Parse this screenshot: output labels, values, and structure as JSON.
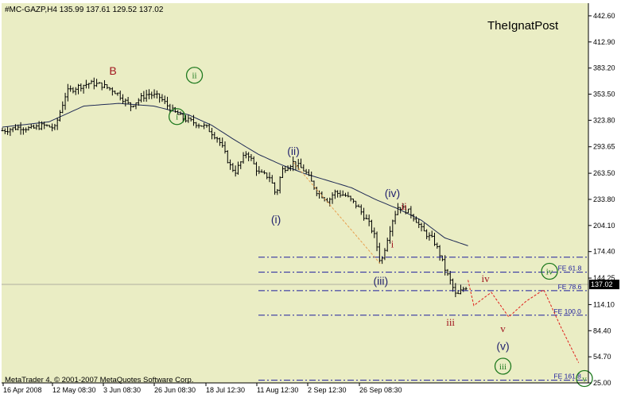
{
  "header": {
    "symbol_line": "#MC-GAZP,H4  135.99 137.61 129.52 137.02",
    "watermark": "TheIgnatPost"
  },
  "footer": {
    "copyright": "MetaTrader 4, © 2001-2007 MetaQuotes Software Corp."
  },
  "colors": {
    "background": "#eaedc4",
    "price_bars": "#000000",
    "moving_average": "#1f2a55",
    "fibo_lines": "#1e1e9e",
    "projection": "#e0201c",
    "green_wave": "#1f7a1f",
    "blue_wave": "#23236f",
    "red_wave": "#a0141e",
    "dashed_orange": "#e8a050",
    "current_price_box": "#000000"
  },
  "chart_data": {
    "type": "ohlc",
    "symbol": "#MC-GAZP",
    "timeframe": "H4",
    "last_bar": {
      "open": 135.99,
      "high": 137.61,
      "low": 129.52,
      "close": 137.02
    },
    "current_price_label": "137.02",
    "ylim": [
      25.0,
      457.0
    ],
    "y_ticks": [
      "442.60",
      "412.90",
      "383.20",
      "353.50",
      "323.80",
      "293.65",
      "263.50",
      "233.80",
      "204.10",
      "174.40",
      "144.25",
      "114.10",
      "84.40",
      "54.70",
      "25.00"
    ],
    "x_ticks": [
      "16 Apr 2008",
      "12 May 08:30",
      "3 Jun 08:30",
      "26 Jun 08:30",
      "18 Jul 12:30",
      "11 Aug 12:30",
      "2 Sep 12:30",
      "26 Sep 08:30"
    ],
    "price_path": [
      [
        0,
        312
      ],
      [
        3,
        316
      ],
      [
        5,
        314
      ],
      [
        7,
        318
      ],
      [
        9,
        315
      ],
      [
        10,
        335
      ],
      [
        11,
        356
      ],
      [
        13,
        362
      ],
      [
        15,
        366
      ],
      [
        17,
        364
      ],
      [
        19,
        358
      ],
      [
        20,
        353
      ],
      [
        21,
        346
      ],
      [
        22,
        340
      ],
      [
        24,
        350
      ],
      [
        25,
        354
      ],
      [
        27,
        350
      ],
      [
        29,
        336
      ],
      [
        31,
        326
      ],
      [
        33,
        321
      ],
      [
        35,
        316
      ],
      [
        37,
        303
      ],
      [
        38,
        290
      ],
      [
        39,
        273
      ],
      [
        40,
        265
      ],
      [
        42,
        288
      ],
      [
        44,
        264
      ],
      [
        46,
        259
      ],
      [
        47,
        238
      ],
      [
        48,
        267
      ],
      [
        50,
        276
      ],
      [
        52,
        266
      ],
      [
        54,
        243
      ],
      [
        56,
        232
      ],
      [
        57,
        242
      ],
      [
        59,
        238
      ],
      [
        61,
        226
      ],
      [
        63,
        206
      ],
      [
        64,
        191
      ],
      [
        65,
        160
      ],
      [
        66,
        186
      ],
      [
        67,
        210
      ],
      [
        68,
        226
      ],
      [
        70,
        219
      ],
      [
        71,
        211
      ],
      [
        72,
        200
      ],
      [
        73,
        193
      ],
      [
        74,
        188
      ],
      [
        75,
        174
      ],
      [
        76,
        155
      ],
      [
        77,
        140
      ],
      [
        78,
        123
      ],
      [
        79,
        131
      ],
      [
        80,
        136
      ]
    ],
    "moving_average_path": [
      [
        0,
        316
      ],
      [
        8,
        322
      ],
      [
        14,
        340
      ],
      [
        20,
        343
      ],
      [
        26,
        340
      ],
      [
        32,
        330
      ],
      [
        36,
        318
      ],
      [
        40,
        301
      ],
      [
        44,
        285
      ],
      [
        48,
        273
      ],
      [
        52,
        263
      ],
      [
        56,
        255
      ],
      [
        60,
        247
      ],
      [
        64,
        234
      ],
      [
        68,
        223
      ],
      [
        72,
        210
      ],
      [
        76,
        190
      ],
      [
        80,
        181
      ]
    ],
    "fibo_levels": [
      {
        "label": "",
        "value": 168
      },
      {
        "label": "FE 61.8",
        "value": 151
      },
      {
        "label": "FE 78.6",
        "value": 130
      },
      {
        "label": "FE 100.0",
        "value": 102
      },
      {
        "label": "FE 161.8",
        "value": 28
      }
    ],
    "projection_path": [
      [
        80,
        142
      ],
      [
        81,
        113
      ],
      [
        84,
        128
      ],
      [
        87,
        100
      ],
      [
        90,
        118
      ],
      [
        93,
        131
      ],
      [
        96,
        88
      ],
      [
        99,
        48
      ]
    ],
    "dashed_line": [
      [
        50,
        276
      ],
      [
        65,
        160
      ]
    ],
    "wave_labels": [
      {
        "text": "B",
        "x": 19,
        "y": 380,
        "style": "red"
      },
      {
        "text": "i",
        "x": 30,
        "y": 328,
        "style": "green_circle"
      },
      {
        "text": "ii",
        "x": 33,
        "y": 375,
        "style": "green_circle"
      },
      {
        "text": "(i)",
        "x": 47,
        "y": 211,
        "style": "blue"
      },
      {
        "text": "(ii)",
        "x": 50,
        "y": 289,
        "style": "blue"
      },
      {
        "text": "(iii)",
        "x": 65,
        "y": 141,
        "style": "blue"
      },
      {
        "text": "(iv)",
        "x": 67,
        "y": 241,
        "style": "blue"
      },
      {
        "text": "i",
        "x": 67,
        "y": 183,
        "style": "red"
      },
      {
        "text": "ii",
        "x": 69,
        "y": 226,
        "style": "red"
      },
      {
        "text": "iii",
        "x": 77,
        "y": 94,
        "style": "red"
      },
      {
        "text": "iv",
        "x": 83,
        "y": 144,
        "style": "red"
      },
      {
        "text": "v",
        "x": 86,
        "y": 87,
        "style": "red"
      },
      {
        "text": "iv",
        "x": 94,
        "y": 152,
        "style": "green_circle"
      },
      {
        "text": "(v)",
        "x": 86,
        "y": 67,
        "style": "blue"
      },
      {
        "text": "iii",
        "x": 86,
        "y": 44,
        "style": "green_circle"
      },
      {
        "text": "v",
        "x": 100,
        "y": 30,
        "style": "green_circle"
      }
    ]
  }
}
